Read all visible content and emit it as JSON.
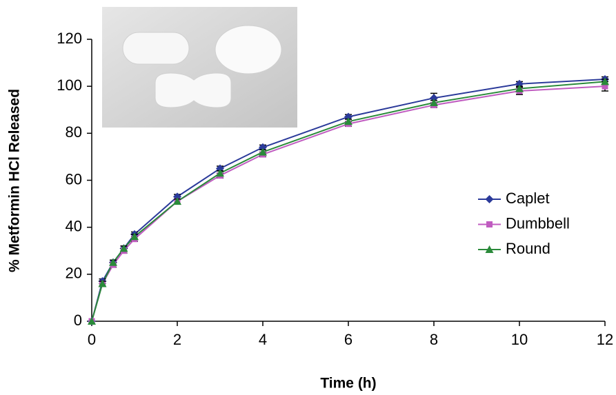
{
  "chart_data": {
    "type": "line",
    "x_label": "Time (h)",
    "y_label": "% Metformin HCl Released",
    "x": [
      0,
      0.25,
      0.5,
      0.75,
      1,
      2,
      3,
      4,
      6,
      8,
      10,
      12
    ],
    "series": [
      {
        "name": "Caplet",
        "color": "#2b3a9a",
        "marker": "diamond",
        "values": [
          0,
          17,
          25,
          31,
          37,
          53,
          65,
          74,
          87,
          95,
          101,
          103
        ],
        "errors": [
          0,
          1,
          1,
          1,
          1,
          1,
          1,
          1,
          1,
          2,
          1,
          1
        ]
      },
      {
        "name": "Dumbbell",
        "color": "#c05cc0",
        "marker": "square",
        "values": [
          0,
          16,
          24,
          30,
          35,
          51,
          62,
          71,
          84,
          92,
          98,
          100
        ],
        "errors": [
          0,
          1,
          1,
          1,
          1,
          1,
          1,
          1,
          1,
          1,
          1.5,
          2
        ]
      },
      {
        "name": "Round",
        "color": "#2a8a3a",
        "marker": "triangle",
        "values": [
          0,
          16,
          25,
          31,
          36,
          51,
          63,
          72,
          85,
          93,
          99,
          102
        ],
        "errors": [
          0,
          1,
          1,
          1,
          1,
          1,
          1,
          1,
          1,
          1,
          1,
          1
        ]
      }
    ],
    "xlim": [
      0,
      12
    ],
    "xticks": [
      0,
      2,
      4,
      6,
      8,
      10,
      12
    ],
    "ylim": [
      0,
      120
    ],
    "yticks": [
      0,
      20,
      40,
      60,
      80,
      100,
      120
    ],
    "grid": false,
    "legend": "right"
  }
}
